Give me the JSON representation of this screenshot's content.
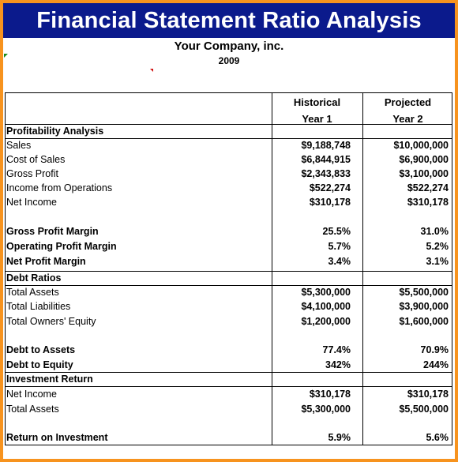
{
  "title": "Financial Statement Ratio Analysis",
  "company": "Your Company, inc.",
  "year": "2009",
  "columns": {
    "historical": "Historical",
    "historical_sub": "Year 1",
    "projected": "Projected",
    "projected_sub": "Year 2"
  },
  "sections": {
    "profitability": "Profitability Analysis",
    "debt": "Debt Ratios",
    "investment": "Investment Return"
  },
  "rows": {
    "sales": {
      "label": "Sales",
      "y1": "$9,188,748",
      "y2": "$10,000,000"
    },
    "cost_of_sales": {
      "label": "Cost of Sales",
      "y1": "$6,844,915",
      "y2": "$6,900,000"
    },
    "gross_profit": {
      "label": "Gross Profit",
      "y1": "$2,343,833",
      "y2": "$3,100,000"
    },
    "income_ops": {
      "label": "Income from Operations",
      "y1": "$522,274",
      "y2": "$522,274"
    },
    "net_income": {
      "label": "Net Income",
      "y1": "$310,178",
      "y2": "$310,178"
    },
    "gross_margin": {
      "label": "Gross Profit Margin",
      "y1": "25.5%",
      "y2": "31.0%"
    },
    "op_margin": {
      "label": "Operating Profit Margin",
      "y1": "5.7%",
      "y2": "5.2%"
    },
    "net_margin": {
      "label": "Net Profit Margin",
      "y1": "3.4%",
      "y2": "3.1%"
    },
    "total_assets": {
      "label": "Total Assets",
      "y1": "$5,300,000",
      "y2": "$5,500,000"
    },
    "total_liabilities": {
      "label": "Total Liabilities",
      "y1": "$4,100,000",
      "y2": "$3,900,000"
    },
    "owners_equity": {
      "label": "Total Owners' Equity",
      "y1": "$1,200,000",
      "y2": "$1,600,000"
    },
    "debt_assets": {
      "label": "Debt to Assets",
      "y1": "77.4%",
      "y2": "70.9%"
    },
    "debt_equity": {
      "label": "Debt to Equity",
      "y1": "342%",
      "y2": "244%"
    },
    "inv_net_income": {
      "label": "Net Income",
      "y1": "$310,178",
      "y2": "$310,178"
    },
    "inv_total_assets": {
      "label": "Total Assets",
      "y1": "$5,300,000",
      "y2": "$5,500,000"
    },
    "roi": {
      "label": "Return on Investment",
      "y1": "5.9%",
      "y2": "5.6%"
    }
  },
  "colors": {
    "banner": "#0b1a8c",
    "frame": "#f7931e"
  }
}
